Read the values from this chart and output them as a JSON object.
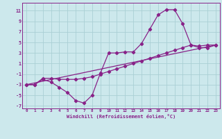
{
  "xlabel": "Windchill (Refroidissement éolien,°C)",
  "background_color": "#cce8ec",
  "grid_color": "#aacfd5",
  "line_color": "#882288",
  "xlim": [
    -0.5,
    23.5
  ],
  "ylim": [
    -7.5,
    12.5
  ],
  "xticks": [
    0,
    1,
    2,
    3,
    4,
    5,
    6,
    7,
    8,
    9,
    10,
    11,
    12,
    13,
    14,
    15,
    16,
    17,
    18,
    19,
    20,
    21,
    22,
    23
  ],
  "yticks": [
    -7,
    -5,
    -3,
    -1,
    1,
    3,
    5,
    7,
    9,
    11
  ],
  "line1_x": [
    0,
    1,
    2,
    3,
    4,
    5,
    6,
    7,
    8,
    9,
    10,
    11,
    12,
    13,
    14,
    15,
    16,
    17,
    18,
    19,
    20,
    21,
    22,
    23
  ],
  "line1_y": [
    -3,
    -3,
    -2,
    -2.5,
    -3.5,
    -4.5,
    -6,
    -6.5,
    -5,
    -0.8,
    3,
    3,
    3.2,
    3.2,
    4.8,
    7.5,
    10.2,
    11.2,
    11.2,
    8.5,
    4.5,
    4.3,
    4.5,
    4.5
  ],
  "line2_x": [
    0,
    1,
    2,
    3,
    4,
    5,
    6,
    7,
    8,
    9,
    10,
    11,
    12,
    13,
    14,
    15,
    16,
    17,
    18,
    19,
    20,
    21,
    22,
    23
  ],
  "line2_y": [
    -3,
    -3,
    -1.8,
    -1.8,
    -2,
    -2,
    -2,
    -1.8,
    -1.5,
    -1,
    -0.5,
    0,
    0.5,
    1,
    1.5,
    2,
    2.5,
    3,
    3.5,
    4,
    4.5,
    4,
    4,
    4.5
  ],
  "line3_x": [
    0,
    23
  ],
  "line3_y": [
    -3,
    4.5
  ]
}
